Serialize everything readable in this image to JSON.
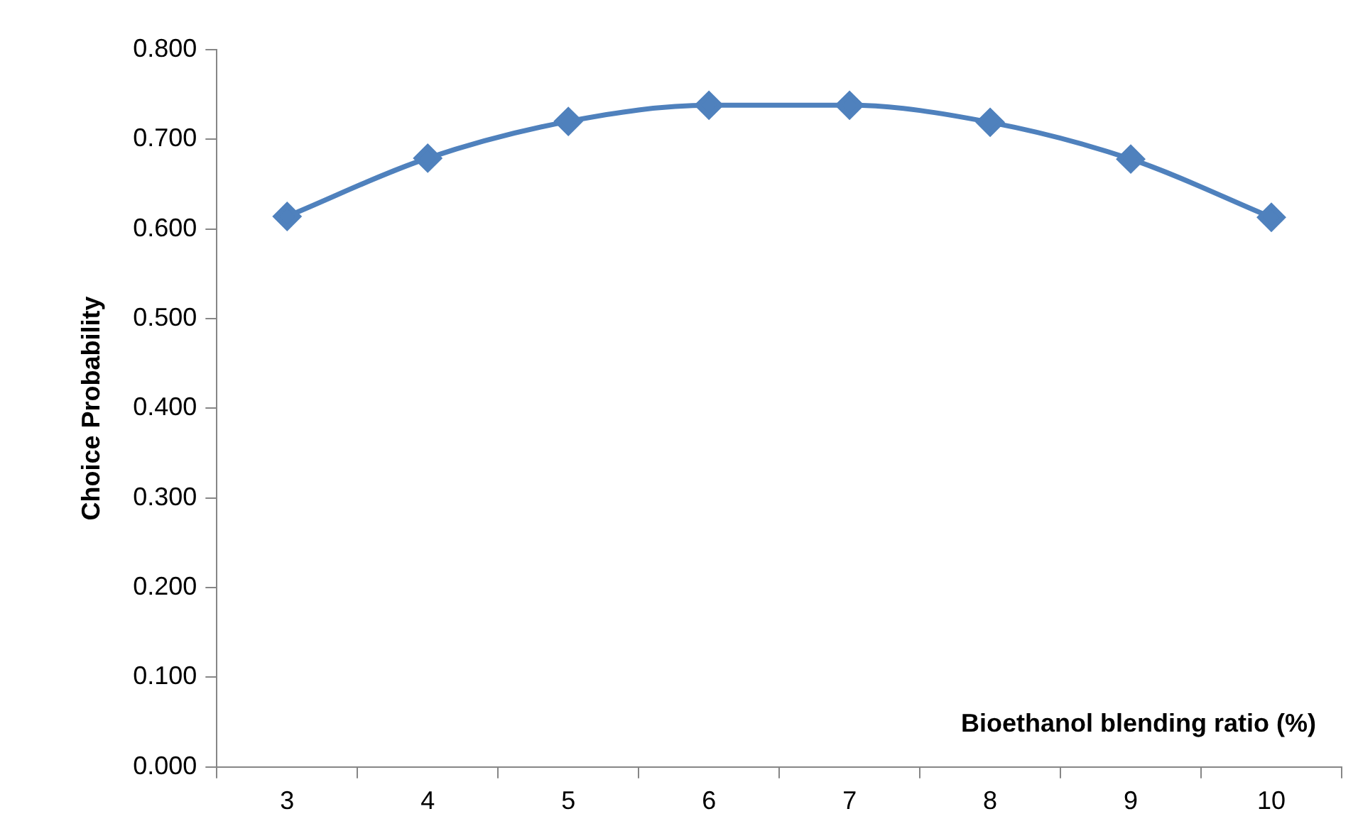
{
  "chart_data": {
    "type": "line",
    "xlabel": "Bioethanol blending ratio (%)",
    "ylabel": "Choice Probability",
    "categories": [
      "3",
      "4",
      "5",
      "6",
      "7",
      "8",
      "9",
      "10"
    ],
    "series": [
      {
        "color": "#4f81bd",
        "values": [
          0.614,
          0.679,
          0.72,
          0.738,
          0.738,
          0.719,
          0.678,
          0.613
        ]
      }
    ],
    "ylim": [
      0,
      0.8
    ],
    "yticks": [
      {
        "value": 0,
        "label": "0.000"
      },
      {
        "value": 0.1,
        "label": "0.100"
      },
      {
        "value": 0.2,
        "label": "0.200"
      },
      {
        "value": 0.3,
        "label": "0.300"
      },
      {
        "value": 0.4,
        "label": "0.400"
      },
      {
        "value": 0.5,
        "label": "0.500"
      },
      {
        "value": 0.6,
        "label": "0.600"
      },
      {
        "value": 0.7,
        "label": "0.700"
      },
      {
        "value": 0.8,
        "label": "0.800"
      }
    ],
    "grid": false,
    "legend": false,
    "marker": "diamond",
    "line_style": "solid"
  }
}
